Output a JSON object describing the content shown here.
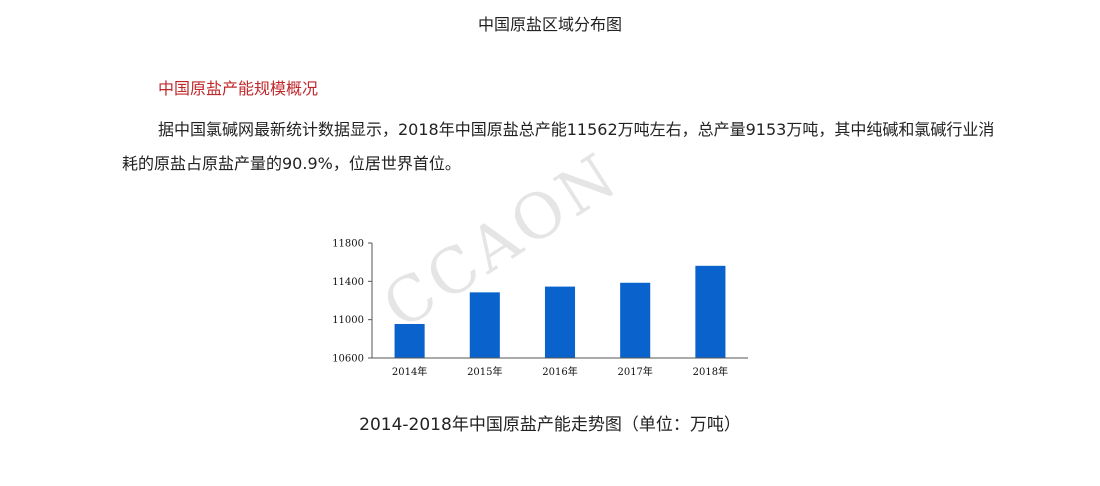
{
  "page": {
    "title": "中国原盐区域分布图"
  },
  "section": {
    "heading": "中国原盐产能规模概况",
    "paragraph": "据中国氯碱网最新统计数据显示，2018年中国原盐总产能11562万吨左右，总产量9153万吨，其中纯碱和氯碱行业消耗的原盐占原盐产量的90.9%，位居世界首位。"
  },
  "chart_data": {
    "type": "bar",
    "title": "2014-2018年中国原盐产能走势图（单位：万吨）",
    "categories": [
      "2014年",
      "2015年",
      "2016年",
      "2017年",
      "2018年"
    ],
    "values": [
      10955,
      11285,
      11345,
      11385,
      11562
    ],
    "xlabel": "",
    "ylabel": "",
    "ylim": [
      10600,
      11800
    ],
    "yticks": [
      10600,
      11000,
      11400,
      11800
    ],
    "grid": false,
    "legend": "none",
    "bar_color": "#0a63cc",
    "watermark": "CCAON"
  }
}
